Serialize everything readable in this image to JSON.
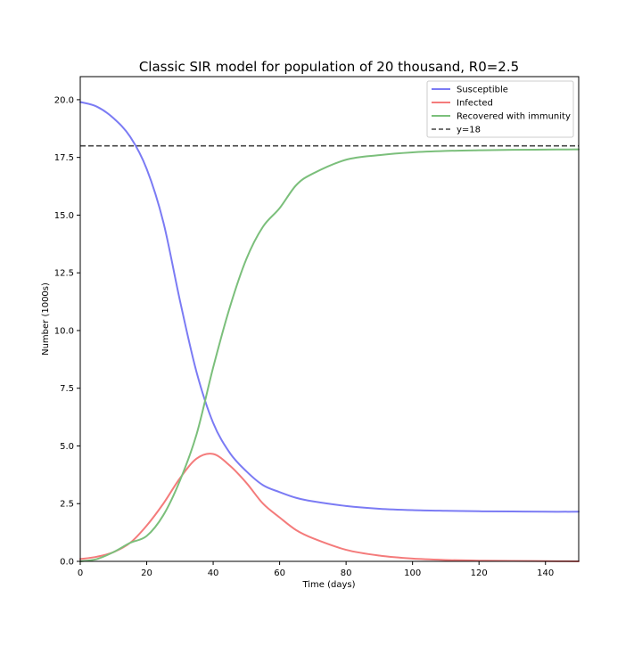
{
  "chart_data": {
    "type": "line",
    "title": "Classic SIR model for population of 20 thousand, R0=2.5",
    "xlabel": "Time (days)",
    "ylabel": "Number (1000s)",
    "xlim": [
      0,
      150
    ],
    "ylim": [
      0,
      21
    ],
    "xticks": [
      0,
      20,
      40,
      60,
      80,
      100,
      120,
      140
    ],
    "yticks": [
      0.0,
      2.5,
      5.0,
      7.5,
      10.0,
      12.5,
      15.0,
      17.5,
      20.0
    ],
    "grid": false,
    "legend_position": "top-right",
    "x": [
      0,
      5,
      10,
      15,
      20,
      25,
      30,
      35,
      40,
      45,
      50,
      55,
      60,
      65,
      70,
      80,
      90,
      100,
      110,
      120,
      130,
      140,
      150
    ],
    "series": [
      {
        "name": "Susceptible",
        "color": "#7b7bf4",
        "style": "solid",
        "values": [
          19.9,
          19.7,
          19.2,
          18.4,
          17.0,
          14.7,
          11.3,
          8.2,
          6.0,
          4.7,
          3.9,
          3.3,
          3.0,
          2.75,
          2.6,
          2.4,
          2.28,
          2.22,
          2.19,
          2.17,
          2.16,
          2.15,
          2.15
        ]
      },
      {
        "name": "Infected",
        "color": "#f47b7b",
        "style": "solid",
        "values": [
          0.1,
          0.2,
          0.4,
          0.8,
          1.55,
          2.5,
          3.6,
          4.45,
          4.65,
          4.15,
          3.4,
          2.5,
          1.9,
          1.35,
          1.0,
          0.5,
          0.25,
          0.12,
          0.06,
          0.03,
          0.02,
          0.01,
          0.0
        ]
      },
      {
        "name": "Recovered with immunity",
        "color": "#7bbf7b",
        "style": "solid",
        "values": [
          0.0,
          0.1,
          0.4,
          0.8,
          1.1,
          2.0,
          3.5,
          5.5,
          8.4,
          11.0,
          13.1,
          14.5,
          15.3,
          16.3,
          16.8,
          17.4,
          17.6,
          17.72,
          17.78,
          17.81,
          17.83,
          17.84,
          17.85
        ]
      }
    ],
    "reference_line": {
      "name": "y=18",
      "y": 18,
      "color": "#444444",
      "style": "dashed"
    }
  }
}
